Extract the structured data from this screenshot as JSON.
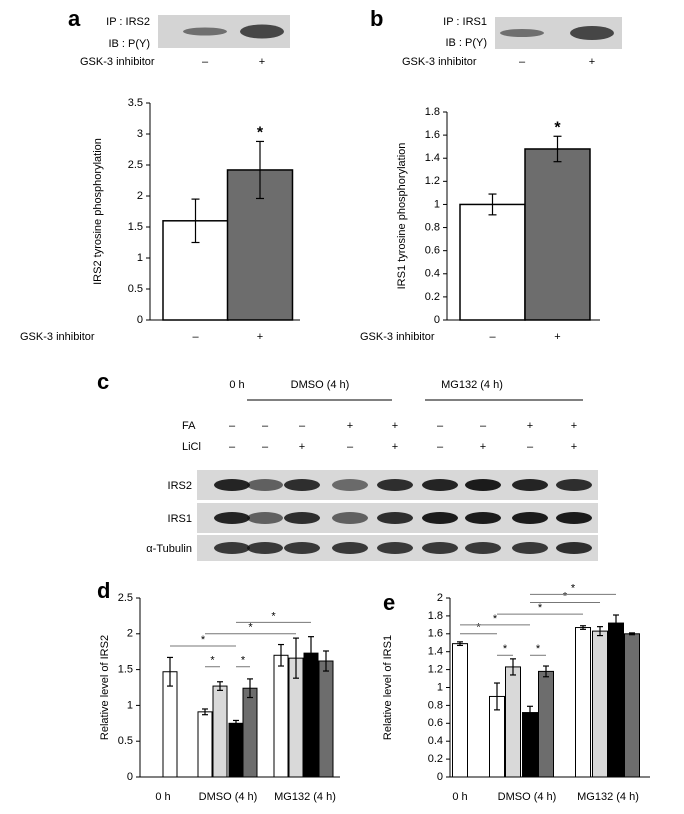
{
  "chart_data": [
    {
      "type": "bar",
      "panel": "a",
      "blot": {
        "labels": [
          "IP : IRS2",
          "IB : P(Y)"
        ],
        "treatment": "GSK-3 inhibitor",
        "lanes": [
          "–",
          "+"
        ]
      },
      "ylabel": "IRS2 tyrosine phosphorylation",
      "xlabel": "GSK-3 inhibitor",
      "categories": [
        "–",
        "+"
      ],
      "values": [
        1.6,
        2.42
      ],
      "errors": [
        0.35,
        0.46
      ],
      "colors": [
        "#ffffff",
        "#6d6d6d"
      ],
      "significance": [
        null,
        "*"
      ],
      "ylim": [
        0,
        3.5
      ],
      "yticks": [
        0,
        0.5,
        1,
        1.5,
        2,
        2.5,
        3,
        3.5
      ]
    },
    {
      "type": "bar",
      "panel": "b",
      "blot": {
        "labels": [
          "IP : IRS1",
          "IB : P(Y)"
        ],
        "treatment": "GSK-3 inhibitor",
        "lanes": [
          "–",
          "+"
        ]
      },
      "ylabel": "IRS1 tyrosine phosphorylation",
      "xlabel": "GSK-3 inhibitor",
      "categories": [
        "–",
        "+"
      ],
      "values": [
        1.0,
        1.48
      ],
      "errors": [
        0.09,
        0.11
      ],
      "colors": [
        "#ffffff",
        "#6d6d6d"
      ],
      "significance": [
        null,
        "*"
      ],
      "ylim": [
        0,
        1.8
      ],
      "yticks": [
        0,
        0.2,
        0.4,
        0.6,
        0.8,
        1,
        1.2,
        1.4,
        1.6,
        1.8
      ]
    },
    {
      "type": "bar",
      "panel": "d",
      "ylabel": "Relative level of IRS2",
      "categories": [
        "0 h",
        "DMSO (4 h)",
        "MG132 (4 h)"
      ],
      "series": [
        {
          "color": "#ffffff",
          "values": [
            1.47,
            0.91,
            1.7
          ],
          "errors": [
            0.2,
            0.04,
            0.15
          ]
        },
        {
          "color": "#d9d9d9",
          "values": [
            null,
            1.27,
            1.66
          ],
          "errors": [
            null,
            0.06,
            0.28
          ]
        },
        {
          "color": "#000000",
          "values": [
            null,
            0.75,
            1.73
          ],
          "errors": [
            null,
            0.04,
            0.23
          ]
        },
        {
          "color": "#6d6d6d",
          "values": [
            null,
            1.24,
            1.62
          ],
          "errors": [
            null,
            0.13,
            0.14
          ]
        }
      ],
      "significance": [
        "*",
        "*",
        "*",
        "*",
        "*"
      ],
      "ylim": [
        0,
        2.5
      ],
      "yticks": [
        0,
        0.5,
        1,
        1.5,
        2,
        2.5
      ]
    },
    {
      "type": "bar",
      "panel": "e",
      "ylabel": "Relative level of IRS1",
      "categories": [
        "0 h",
        "DMSO (4 h)",
        "MG132 (4 h)"
      ],
      "series": [
        {
          "color": "#ffffff",
          "values": [
            1.49,
            0.9,
            1.67
          ],
          "errors": [
            0.02,
            0.15,
            0.02
          ]
        },
        {
          "color": "#d9d9d9",
          "values": [
            null,
            1.23,
            1.63
          ],
          "errors": [
            null,
            0.09,
            0.05
          ]
        },
        {
          "color": "#000000",
          "values": [
            null,
            0.72,
            1.72
          ],
          "errors": [
            null,
            0.07,
            0.09
          ]
        },
        {
          "color": "#6d6d6d",
          "values": [
            null,
            1.18,
            1.6
          ],
          "errors": [
            null,
            0.06,
            0.01
          ]
        }
      ],
      "significance": [
        "*",
        "*",
        "*",
        "*",
        "*",
        "*",
        "*"
      ],
      "ylim": [
        0,
        2
      ],
      "yticks": [
        0,
        0.2,
        0.4,
        0.6,
        0.8,
        1,
        1.2,
        1.4,
        1.6,
        1.8,
        2
      ]
    }
  ],
  "blot_c": {
    "panel": "c",
    "groups": [
      "0 h",
      "DMSO (4 h)",
      "MG132 (4 h)"
    ],
    "treatments": [
      {
        "name": "FA",
        "lanes": [
          "–",
          "–",
          "–",
          "+",
          "+",
          "–",
          "–",
          "+",
          "+"
        ]
      },
      {
        "name": "LiCl",
        "lanes": [
          "–",
          "–",
          "+",
          "–",
          "+",
          "–",
          "+",
          "–",
          "+"
        ]
      }
    ],
    "rows": [
      "IRS2",
      "IRS1",
      "α-Tubulin"
    ]
  }
}
